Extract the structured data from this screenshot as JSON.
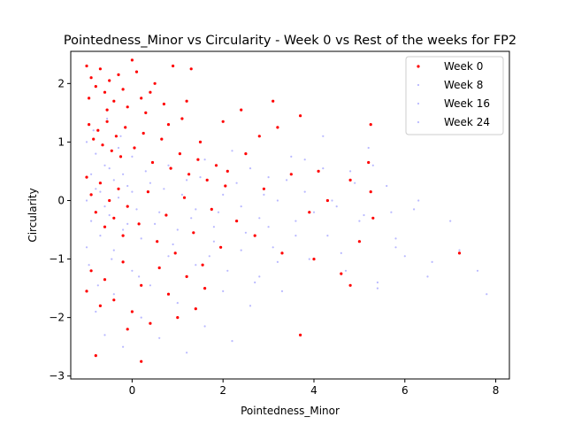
{
  "chart_data": {
    "type": "scatter",
    "title": "Pointedness_Minor vs Circularity - Week 0 vs Rest of the weeks for FP2",
    "xlabel": "Pointedness_Minor",
    "ylabel": "Circularity",
    "xlim": [
      -1.35,
      8.3
    ],
    "ylim": [
      -3.05,
      2.55
    ],
    "xticks": [
      0,
      2,
      4,
      6,
      8
    ],
    "yticks": [
      -3,
      -2,
      -1,
      0,
      1,
      2
    ],
    "grid": false,
    "legend_position": "top-right",
    "series": [
      {
        "name": "Week 0",
        "color": "#ff0000",
        "points": [
          [
            -1.0,
            2.3
          ],
          [
            -0.9,
            2.1
          ],
          [
            -0.8,
            1.95
          ],
          [
            -0.7,
            2.25
          ],
          [
            -0.6,
            1.85
          ],
          [
            -0.5,
            2.05
          ],
          [
            -0.4,
            1.7
          ],
          [
            -0.3,
            2.15
          ],
          [
            -0.2,
            1.9
          ],
          [
            -0.1,
            1.6
          ],
          [
            0.0,
            2.4
          ],
          [
            0.1,
            2.2
          ],
          [
            0.2,
            1.75
          ],
          [
            0.3,
            1.5
          ],
          [
            0.5,
            2.0
          ],
          [
            0.7,
            1.65
          ],
          [
            0.9,
            2.3
          ],
          [
            1.1,
            1.4
          ],
          [
            1.3,
            2.25
          ],
          [
            1.5,
            1.0
          ],
          [
            -0.95,
            1.3
          ],
          [
            -0.85,
            1.05
          ],
          [
            -0.75,
            1.2
          ],
          [
            -0.65,
            0.95
          ],
          [
            -0.55,
            1.35
          ],
          [
            -0.45,
            0.85
          ],
          [
            -0.35,
            1.1
          ],
          [
            -0.25,
            0.75
          ],
          [
            -0.15,
            1.25
          ],
          [
            0.05,
            0.9
          ],
          [
            0.25,
            1.15
          ],
          [
            0.45,
            0.65
          ],
          [
            0.65,
            1.05
          ],
          [
            0.85,
            0.55
          ],
          [
            1.05,
            0.8
          ],
          [
            1.25,
            0.45
          ],
          [
            1.45,
            0.7
          ],
          [
            1.65,
            0.35
          ],
          [
            1.85,
            0.6
          ],
          [
            2.05,
            0.25
          ],
          [
            -1.0,
            0.4
          ],
          [
            -0.9,
            0.1
          ],
          [
            -0.8,
            -0.2
          ],
          [
            -0.7,
            0.3
          ],
          [
            -0.6,
            -0.45
          ],
          [
            -0.5,
            0.0
          ],
          [
            -0.4,
            -0.3
          ],
          [
            -0.3,
            0.2
          ],
          [
            -0.2,
            -0.6
          ],
          [
            -0.1,
            -0.1
          ],
          [
            0.15,
            -0.4
          ],
          [
            0.35,
            0.15
          ],
          [
            0.55,
            -0.7
          ],
          [
            0.75,
            -0.25
          ],
          [
            0.95,
            -0.9
          ],
          [
            1.15,
            0.05
          ],
          [
            1.35,
            -0.55
          ],
          [
            1.55,
            -1.1
          ],
          [
            1.75,
            -0.15
          ],
          [
            1.95,
            -0.8
          ],
          [
            2.1,
            0.5
          ],
          [
            2.3,
            -0.35
          ],
          [
            2.5,
            0.8
          ],
          [
            2.7,
            -0.6
          ],
          [
            2.9,
            0.2
          ],
          [
            3.1,
            1.7
          ],
          [
            3.3,
            -0.9
          ],
          [
            3.5,
            0.45
          ],
          [
            3.7,
            1.45
          ],
          [
            3.9,
            -0.2
          ],
          [
            4.1,
            0.5
          ],
          [
            4.3,
            0.0
          ],
          [
            4.6,
            -1.25
          ],
          [
            4.8,
            0.35
          ],
          [
            5.0,
            -0.7
          ],
          [
            5.2,
            0.65
          ],
          [
            5.25,
            1.3
          ],
          [
            5.3,
            -0.3
          ],
          [
            5.25,
            0.15
          ],
          [
            7.2,
            -0.9
          ],
          [
            -1.0,
            -1.55
          ],
          [
            -0.9,
            -1.2
          ],
          [
            -0.8,
            -2.65
          ],
          [
            -0.7,
            -1.8
          ],
          [
            -0.6,
            -1.35
          ],
          [
            -0.4,
            -1.7
          ],
          [
            -0.2,
            -1.05
          ],
          [
            0.0,
            -1.9
          ],
          [
            0.2,
            -1.45
          ],
          [
            0.4,
            -2.1
          ],
          [
            0.6,
            -1.15
          ],
          [
            0.8,
            -1.6
          ],
          [
            1.0,
            -2.0
          ],
          [
            1.2,
            -1.3
          ],
          [
            1.4,
            -1.85
          ],
          [
            1.6,
            -1.5
          ],
          [
            3.7,
            -2.3
          ],
          [
            4.0,
            -1.0
          ],
          [
            4.8,
            -1.45
          ],
          [
            -0.1,
            -2.2
          ],
          [
            0.2,
            -2.75
          ],
          [
            2.0,
            1.35
          ],
          [
            2.4,
            1.55
          ],
          [
            2.8,
            1.1
          ],
          [
            3.2,
            1.25
          ],
          [
            -0.95,
            1.75
          ],
          [
            -0.55,
            1.55
          ],
          [
            0.4,
            1.85
          ],
          [
            0.8,
            1.3
          ],
          [
            1.2,
            1.7
          ]
        ]
      },
      {
        "name": "Week 8",
        "color": "#8080ff",
        "points": [
          [
            -1.0,
            -0.8
          ],
          [
            -0.8,
            -1.9
          ],
          [
            -0.6,
            -2.3
          ],
          [
            -0.4,
            -1.6
          ],
          [
            -0.2,
            -2.5
          ],
          [
            0.0,
            -1.2
          ],
          [
            0.2,
            -2.0
          ],
          [
            0.4,
            -1.45
          ],
          [
            0.6,
            -2.35
          ],
          [
            0.8,
            -0.95
          ],
          [
            1.0,
            -1.75
          ],
          [
            1.2,
            -2.6
          ],
          [
            1.4,
            -1.1
          ],
          [
            1.6,
            -2.15
          ],
          [
            1.8,
            -0.7
          ],
          [
            2.0,
            -1.55
          ],
          [
            2.2,
            -2.4
          ],
          [
            2.4,
            -0.85
          ],
          [
            2.6,
            -1.8
          ],
          [
            2.8,
            -1.3
          ],
          [
            3.0,
            -0.45
          ],
          [
            3.2,
            -1.05
          ],
          [
            3.4,
            0.35
          ],
          [
            3.6,
            -0.6
          ],
          [
            3.8,
            0.7
          ],
          [
            4.0,
            -0.2
          ],
          [
            4.2,
            1.1
          ],
          [
            4.4,
            0.0
          ],
          [
            4.6,
            -0.9
          ],
          [
            4.8,
            0.5
          ],
          [
            5.0,
            -0.35
          ],
          [
            5.2,
            0.9
          ],
          [
            5.4,
            -1.4
          ],
          [
            5.6,
            0.25
          ],
          [
            5.8,
            -0.65
          ],
          [
            6.0,
            -0.95
          ],
          [
            6.2,
            -0.15
          ],
          [
            6.6,
            -1.05
          ],
          [
            7.2,
            -0.85
          ],
          [
            7.6,
            -1.2
          ]
        ]
      },
      {
        "name": "Week 16",
        "color": "#8080ff",
        "points": [
          [
            -1.0,
            1.0
          ],
          [
            -0.9,
            0.45
          ],
          [
            -0.8,
            0.8
          ],
          [
            -0.7,
            0.15
          ],
          [
            -0.6,
            0.6
          ],
          [
            -0.5,
            -0.25
          ],
          [
            -0.4,
            0.35
          ],
          [
            -0.3,
            0.9
          ],
          [
            -0.2,
            -0.5
          ],
          [
            -0.1,
            0.25
          ],
          [
            0.0,
            0.75
          ],
          [
            0.1,
            -0.15
          ],
          [
            0.3,
            0.5
          ],
          [
            0.5,
            -0.4
          ],
          [
            0.7,
            0.2
          ],
          [
            0.9,
            -0.75
          ],
          [
            1.1,
            0.1
          ],
          [
            1.3,
            -0.3
          ],
          [
            1.5,
            0.4
          ],
          [
            1.7,
            -0.95
          ],
          [
            1.9,
            -0.2
          ],
          [
            2.1,
            -1.2
          ],
          [
            2.3,
            0.3
          ],
          [
            2.5,
            -0.55
          ],
          [
            2.7,
            -1.4
          ],
          [
            2.9,
            0.1
          ],
          [
            3.1,
            -0.8
          ],
          [
            3.3,
            -1.55
          ],
          [
            3.6,
            -0.35
          ],
          [
            3.9,
            -1.0
          ],
          [
            4.3,
            -0.6
          ],
          [
            4.7,
            -1.2
          ],
          [
            5.1,
            -0.25
          ],
          [
            5.4,
            -1.5
          ],
          [
            5.8,
            -0.8
          ],
          [
            6.5,
            -1.3
          ],
          [
            -0.95,
            -1.1
          ],
          [
            -0.75,
            -1.45
          ],
          [
            -0.45,
            -1.0
          ],
          [
            0.15,
            -1.3
          ]
        ]
      },
      {
        "name": "Week 24",
        "color": "#8080ff",
        "points": [
          [
            -1.0,
            0.0
          ],
          [
            -0.9,
            -0.35
          ],
          [
            -0.8,
            0.2
          ],
          [
            -0.7,
            -0.6
          ],
          [
            -0.6,
            -0.1
          ],
          [
            -0.5,
            0.55
          ],
          [
            -0.4,
            -0.85
          ],
          [
            -0.3,
            0.05
          ],
          [
            -0.2,
            0.45
          ],
          [
            -0.1,
            -0.4
          ],
          [
            0.0,
            0.15
          ],
          [
            0.2,
            -0.65
          ],
          [
            0.4,
            0.3
          ],
          [
            0.6,
            -0.2
          ],
          [
            0.8,
            0.6
          ],
          [
            1.0,
            -0.5
          ],
          [
            1.2,
            0.35
          ],
          [
            1.4,
            -0.15
          ],
          [
            1.6,
            0.7
          ],
          [
            1.8,
            -0.45
          ],
          [
            2.0,
            0.1
          ],
          [
            2.2,
            0.85
          ],
          [
            2.4,
            -0.1
          ],
          [
            2.6,
            0.55
          ],
          [
            2.8,
            -0.3
          ],
          [
            3.0,
            0.4
          ],
          [
            3.2,
            0.0
          ],
          [
            3.5,
            0.75
          ],
          [
            3.8,
            0.15
          ],
          [
            4.2,
            0.55
          ],
          [
            4.5,
            -0.1
          ],
          [
            4.9,
            0.3
          ],
          [
            5.3,
            0.6
          ],
          [
            5.7,
            -0.2
          ],
          [
            6.3,
            0.0
          ],
          [
            7.0,
            -0.35
          ],
          [
            7.8,
            -1.6
          ],
          [
            -0.85,
            1.2
          ],
          [
            -0.55,
            1.4
          ],
          [
            -0.25,
            1.1
          ]
        ]
      }
    ]
  }
}
